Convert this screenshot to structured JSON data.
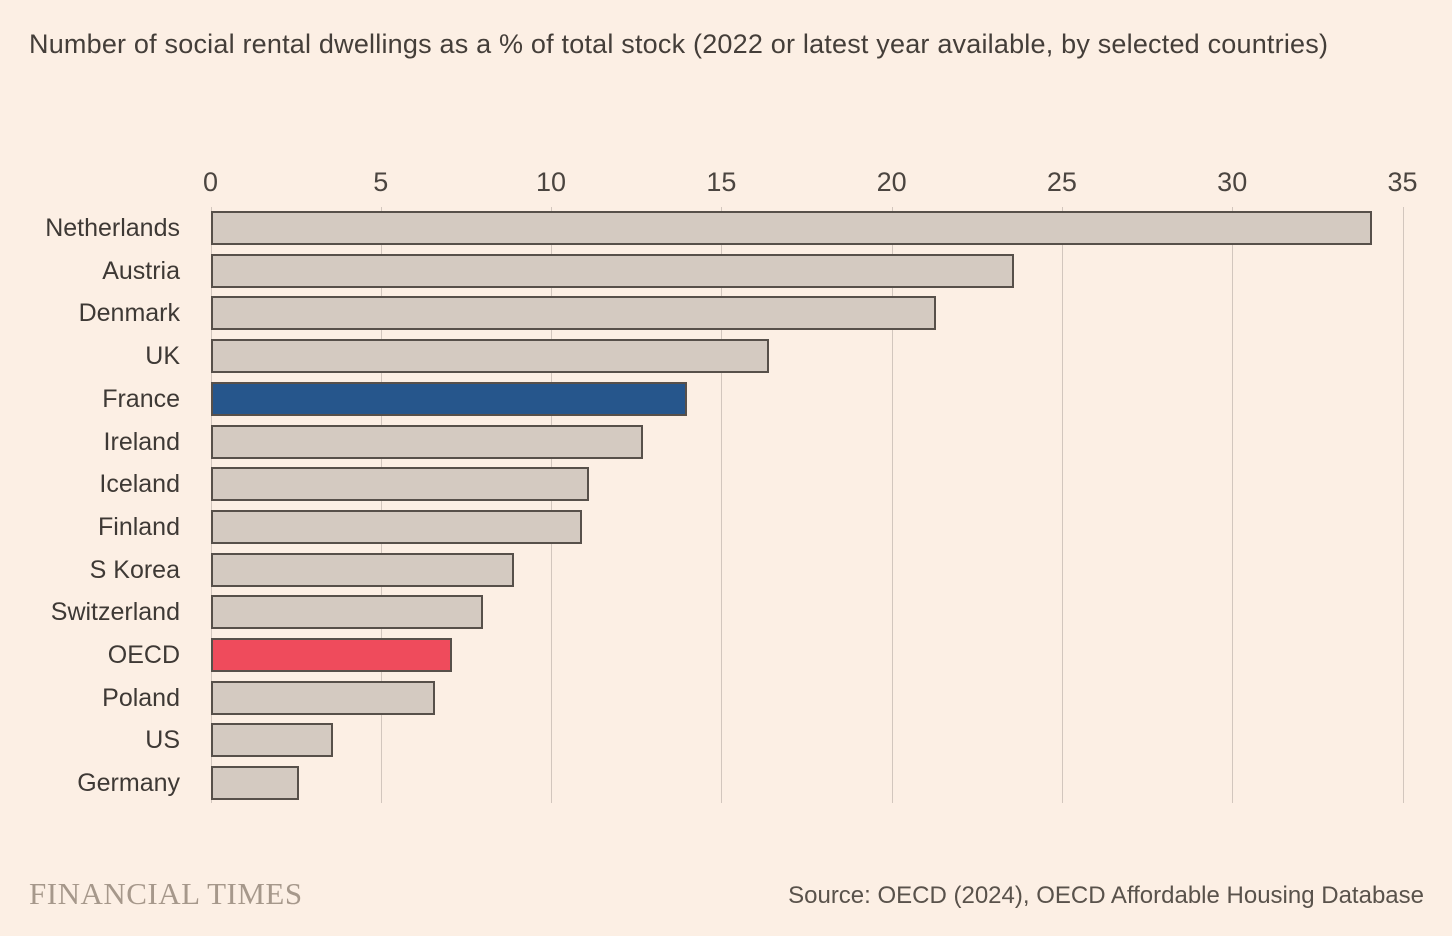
{
  "page": {
    "background": "#fcefe4"
  },
  "header": {
    "title": "Number of social rental dwellings as a % of total stock (2022 or latest year available, by selected countries)"
  },
  "chart_data": {
    "type": "bar",
    "orientation": "horizontal",
    "title": "Number of social rental dwellings as a % of total stock (2022 or latest year available, by selected countries)",
    "categories": [
      "Netherlands",
      "Austria",
      "Denmark",
      "UK",
      "France",
      "Ireland",
      "Iceland",
      "Finland",
      "S Korea",
      "Switzerland",
      "OECD",
      "Poland",
      "US",
      "Germany"
    ],
    "values": [
      34.1,
      23.6,
      21.3,
      16.4,
      14.0,
      12.7,
      11.1,
      10.9,
      8.9,
      8.0,
      7.1,
      6.6,
      3.6,
      2.6
    ],
    "xlabel": "",
    "ylabel": "",
    "xlim": [
      0,
      35
    ],
    "xticks": [
      0,
      5,
      10,
      15,
      20,
      25,
      30,
      35
    ],
    "grid": true,
    "legend": false,
    "colors": {
      "default_bar": "#d4cac1",
      "highlight_France": "#26568c",
      "highlight_OECD": "#ef4b5c",
      "bar_outline": "#57504a",
      "gridline": "#d2c6bd",
      "background": "#fcefe4"
    },
    "highlights": {
      "France": "highlight_France",
      "OECD": "highlight_OECD"
    }
  },
  "footer": {
    "brand": "FINANCIAL TIMES",
    "source": "Source: OECD (2024), OECD Affordable Housing Database"
  }
}
